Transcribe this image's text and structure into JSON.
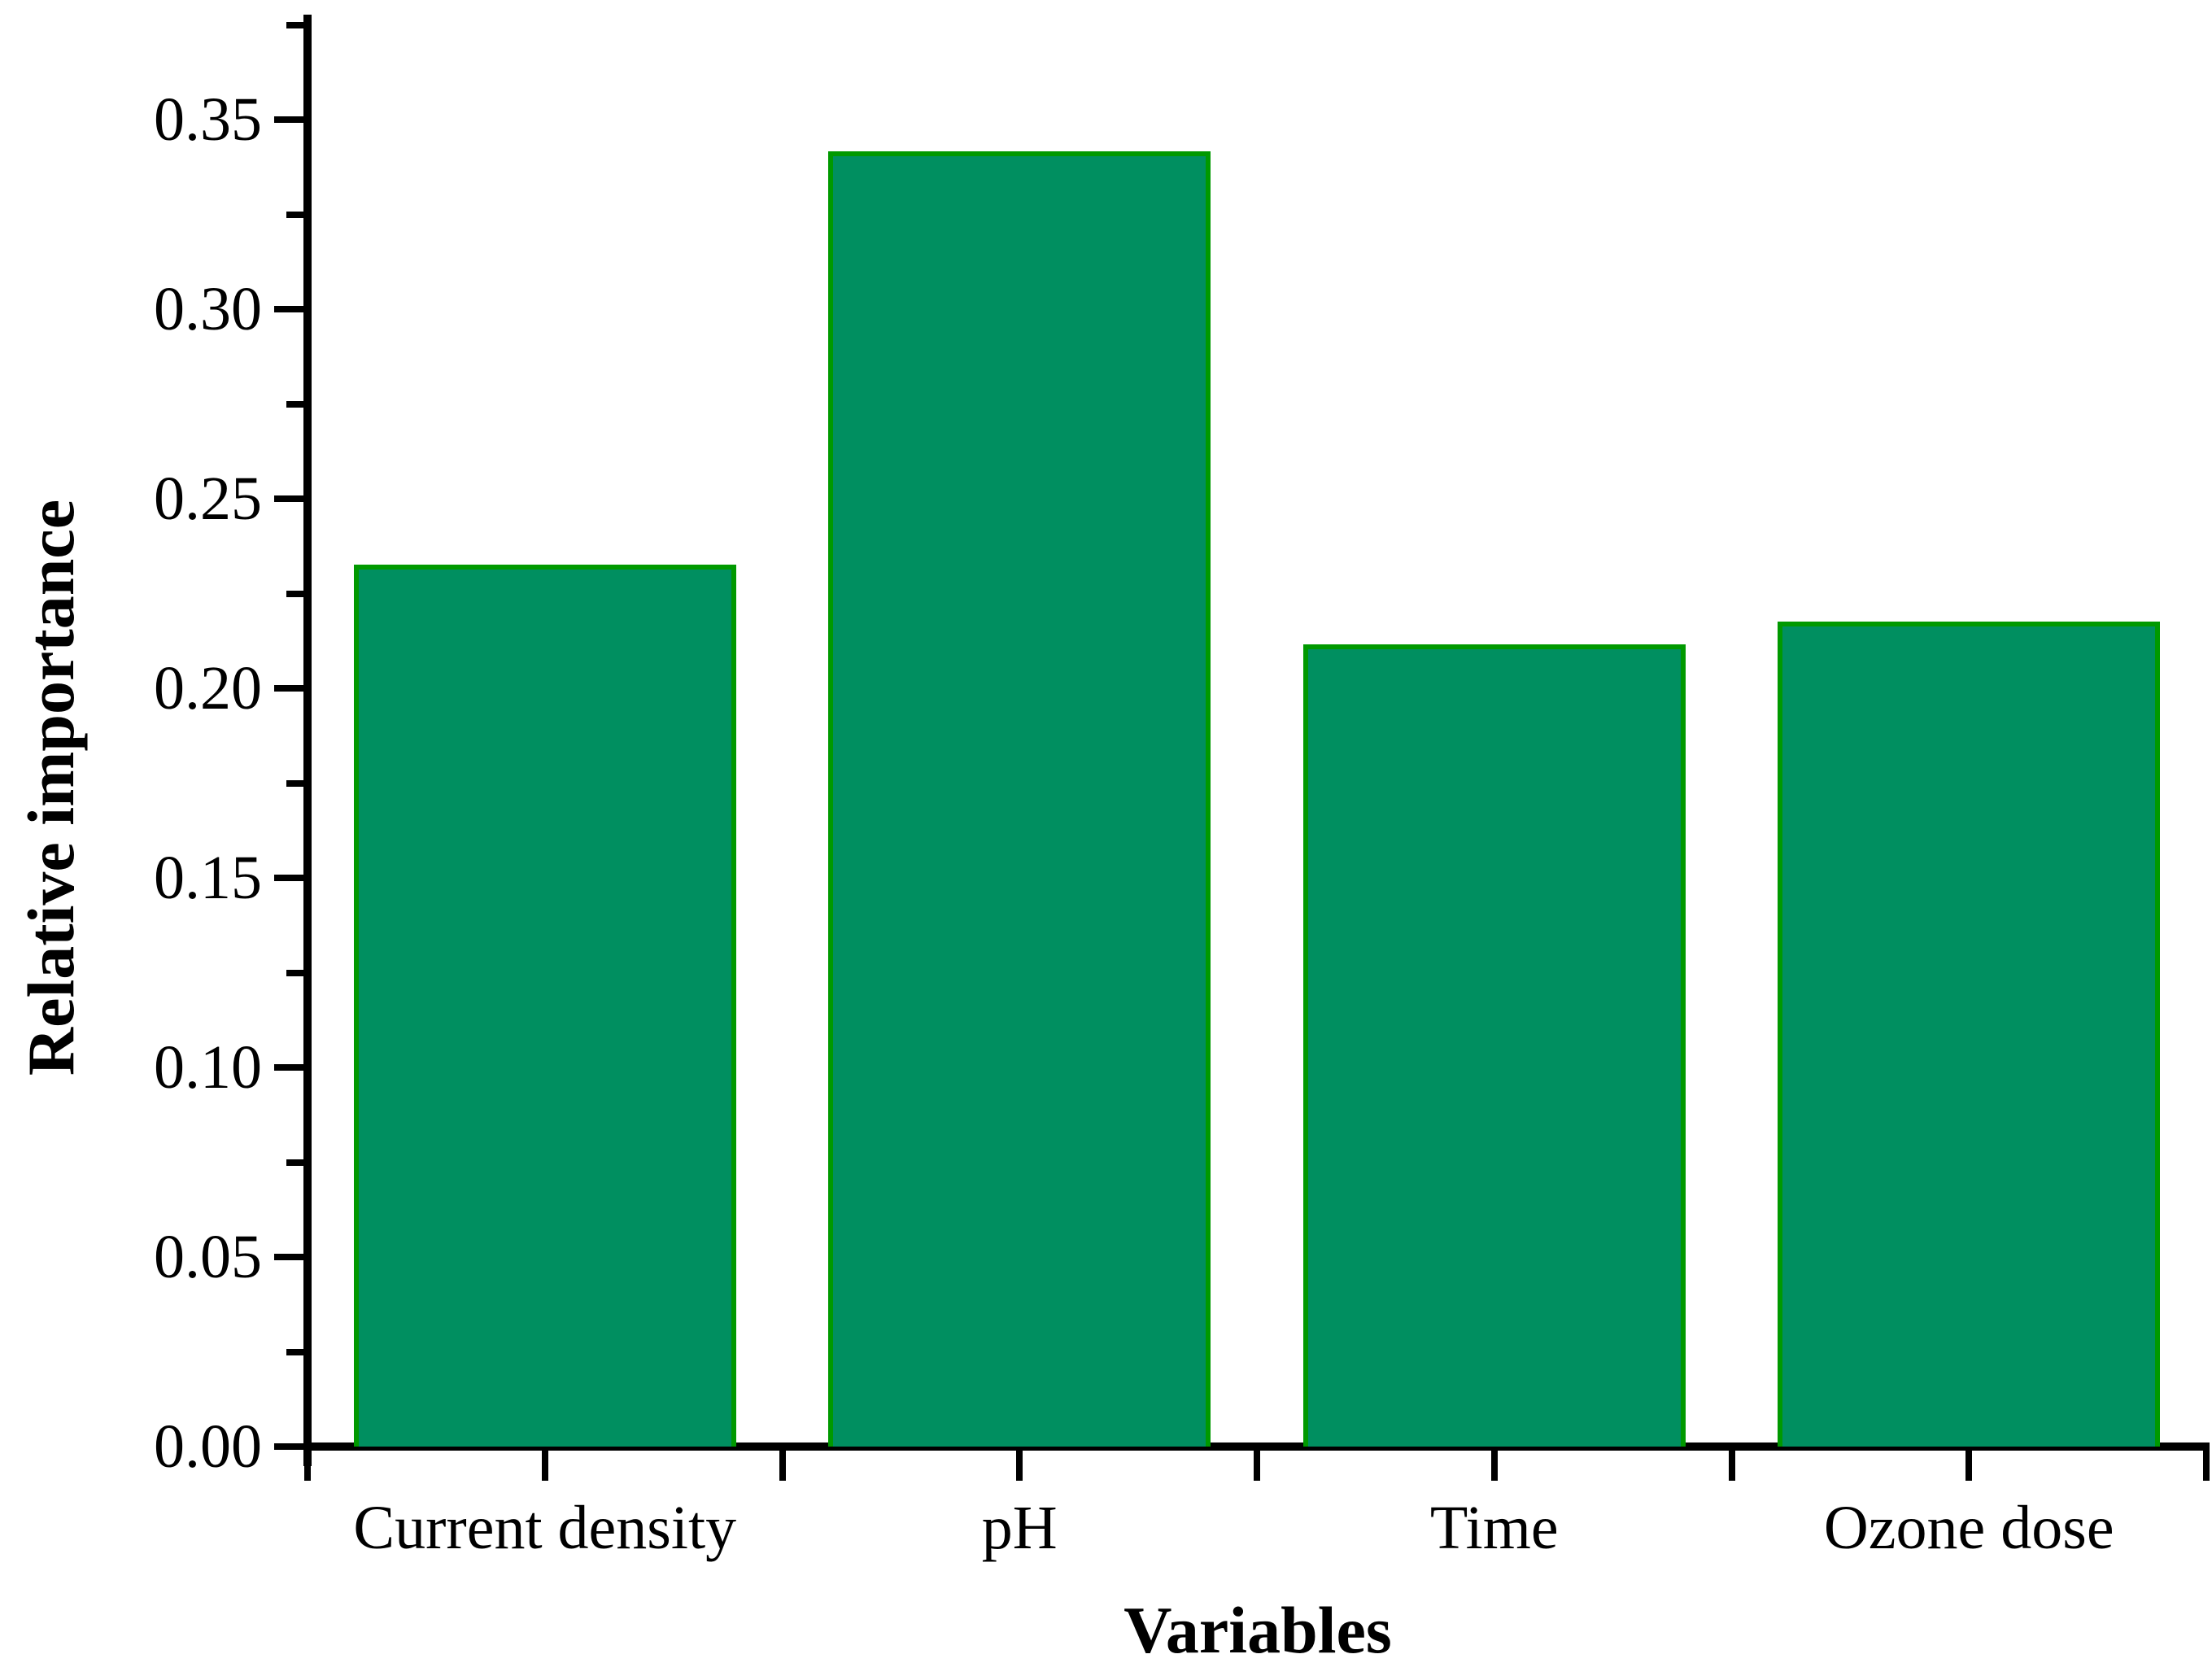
{
  "chart_data": {
    "type": "bar",
    "title": "",
    "categories": [
      "Current density",
      "pH",
      "Time",
      "Ozone dose"
    ],
    "values": [
      0.232,
      0.341,
      0.211,
      0.217
    ],
    "xlabel": "Variables",
    "ylabel": "Relative importance",
    "ylim": [
      0,
      0.3775
    ],
    "y_major_ticks": [
      0.0,
      0.05,
      0.1,
      0.15,
      0.2,
      0.25,
      0.3,
      0.35
    ],
    "y_tick_labels": [
      "0.00",
      "0.05",
      "0.10",
      "0.15",
      "0.20",
      "0.25",
      "0.30",
      "0.35"
    ],
    "y_minor_tick_step": 0.025,
    "grid": false,
    "legend": "none",
    "bar_fill_color": "#008F60",
    "bar_border_color": "#009900",
    "axis_color": "#000000",
    "background_color": "#FFFFFF"
  }
}
